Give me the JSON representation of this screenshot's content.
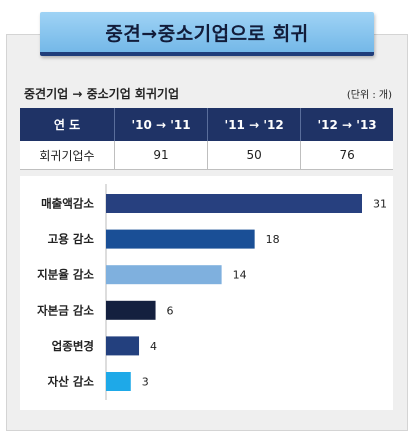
{
  "header": {
    "title": "중견→중소기업으로 회귀",
    "subtitle": "중견기업 → 중소기업 회귀기업",
    "unit": "(단위 : 개)"
  },
  "table": {
    "headers": [
      "연  도",
      "'10 → '11",
      "'11 → '12",
      "'12 → '13"
    ],
    "rows": [
      {
        "label": "회귀기업수",
        "values": [
          "91",
          "50",
          "76"
        ]
      }
    ]
  },
  "chart_data": {
    "type": "bar",
    "orientation": "horizontal",
    "categories": [
      "매출액감소",
      "고용 감소",
      "지분율 감소",
      "자본금 감소",
      "업종변경",
      "자산 감소"
    ],
    "values": [
      31,
      18,
      14,
      6,
      4,
      3
    ],
    "colors": [
      "#27407f",
      "#1a4f96",
      "#7fb0de",
      "#14203f",
      "#23407e",
      "#1ea9e8"
    ],
    "xlim": [
      0,
      31
    ]
  }
}
